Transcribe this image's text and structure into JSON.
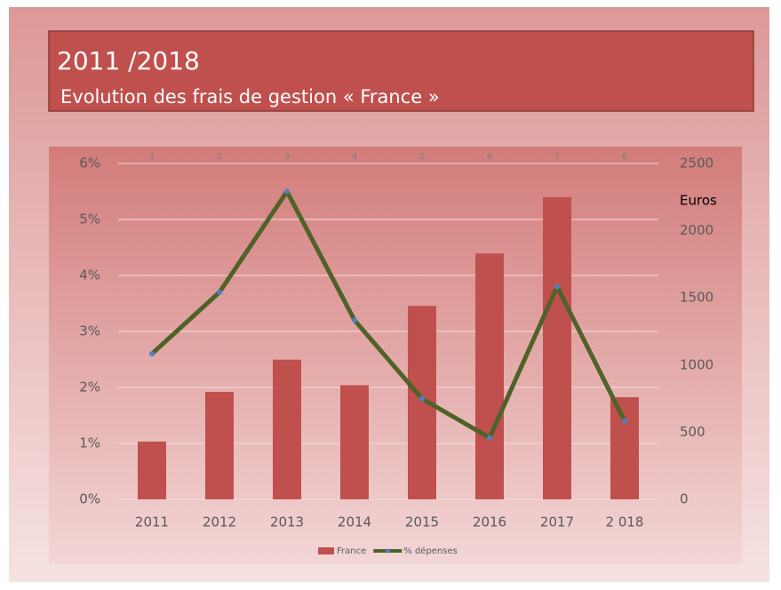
{
  "chart_data": {
    "type": "bar_line",
    "title": "2011 /2018",
    "subtitle": "Evolution des frais de gestion « France »",
    "categories": [
      "2011",
      "2012",
      "2013",
      "2014",
      "2015",
      "2016",
      "2017",
      "2 018"
    ],
    "top_categories": [
      1,
      2,
      3,
      4,
      5,
      6,
      7,
      8
    ],
    "series": [
      {
        "name": "France",
        "type": "bar",
        "axis": "y2",
        "color": "#c0504d",
        "values": [
          430,
          800,
          1040,
          850,
          1440,
          1830,
          2250,
          760
        ]
      },
      {
        "name": "% dépenses",
        "type": "line",
        "axis": "y",
        "color": "#4f6228",
        "marker_color": "#4f81bd",
        "values": [
          2.6,
          3.7,
          5.5,
          3.2,
          1.8,
          1.1,
          3.8,
          1.4
        ]
      }
    ],
    "ylim": [
      0,
      6
    ],
    "yticks": [
      {
        "value": 0,
        "label": "0%"
      },
      {
        "value": 1,
        "label": "1%"
      },
      {
        "value": 2,
        "label": "2%"
      },
      {
        "value": 3,
        "label": "3%"
      },
      {
        "value": 4,
        "label": "4%"
      },
      {
        "value": 5,
        "label": "5%"
      },
      {
        "value": 6,
        "label": "6%"
      }
    ],
    "y2lim": [
      0,
      2500
    ],
    "y2ticks": [
      0,
      500,
      1000,
      1500,
      2000,
      2500
    ],
    "y2label": "Euros",
    "grid": true,
    "legend": "bottom"
  }
}
